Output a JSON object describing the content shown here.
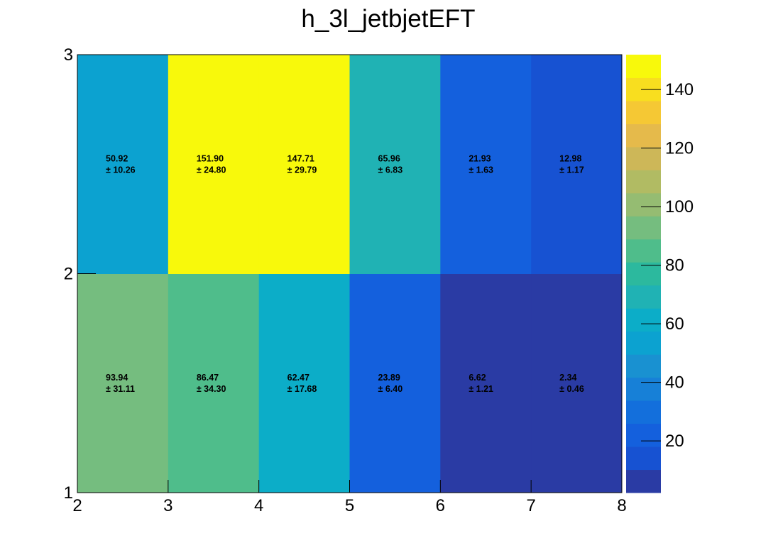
{
  "chart_data": {
    "type": "heatmap",
    "title": "h_3l_jetbjetEFT",
    "xlabel": "",
    "ylabel": "",
    "xlim": [
      2,
      8
    ],
    "ylim": [
      1,
      3
    ],
    "x_edges": [
      2,
      3,
      4,
      5,
      6,
      7,
      8
    ],
    "y_edges": [
      1,
      2,
      3
    ],
    "x_ticks": [
      "2",
      "3",
      "4",
      "5",
      "6",
      "7",
      "8"
    ],
    "y_ticks": [
      "1",
      "2",
      "3"
    ],
    "cells": [
      {
        "x": 2,
        "y": 1,
        "value": 93.94,
        "value_label": "93.94",
        "error_label": "± 31.11"
      },
      {
        "x": 3,
        "y": 1,
        "value": 86.47,
        "value_label": "86.47",
        "error_label": "± 34.30"
      },
      {
        "x": 4,
        "y": 1,
        "value": 62.47,
        "value_label": "62.47",
        "error_label": "± 17.68"
      },
      {
        "x": 5,
        "y": 1,
        "value": 23.89,
        "value_label": "23.89",
        "error_label": "± 6.40"
      },
      {
        "x": 6,
        "y": 1,
        "value": 6.62,
        "value_label": "6.62",
        "error_label": "± 1.21"
      },
      {
        "x": 7,
        "y": 1,
        "value": 2.34,
        "value_label": "2.34",
        "error_label": "± 0.46"
      },
      {
        "x": 2,
        "y": 2,
        "value": 50.92,
        "value_label": "50.92",
        "error_label": "± 10.26"
      },
      {
        "x": 3,
        "y": 2,
        "value": 151.9,
        "value_label": "151.90",
        "error_label": "± 24.80"
      },
      {
        "x": 4,
        "y": 2,
        "value": 147.71,
        "value_label": "147.71",
        "error_label": "± 29.79"
      },
      {
        "x": 5,
        "y": 2,
        "value": 65.96,
        "value_label": "65.96",
        "error_label": "± 6.83"
      },
      {
        "x": 6,
        "y": 2,
        "value": 21.93,
        "value_label": "21.93",
        "error_label": "± 1.63"
      },
      {
        "x": 7,
        "y": 2,
        "value": 12.98,
        "value_label": "12.98",
        "error_label": "± 1.17"
      }
    ],
    "colorbar": {
      "range": [
        2.34,
        151.9
      ],
      "ticks": [
        20,
        40,
        60,
        80,
        100,
        120,
        140
      ],
      "palette": [
        "#2a3ba4",
        "#1752d2",
        "#1460dd",
        "#136fdc",
        "#1780d7",
        "#1991d1",
        "#0ca2d0",
        "#0cadc8",
        "#20b2b4",
        "#2cb99e",
        "#4fbd8b",
        "#75bd7f",
        "#95bc72",
        "#b1bb63",
        "#cdb758",
        "#e5ba4b",
        "#f5c834",
        "#f8de1f",
        "#f8f90b"
      ]
    },
    "grid": false,
    "legend": "colorbar-right"
  }
}
